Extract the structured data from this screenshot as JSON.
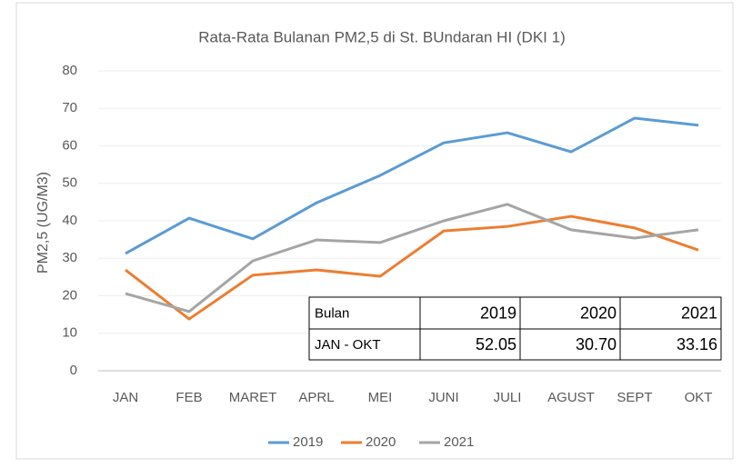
{
  "chart_data": {
    "type": "line",
    "title": "Rata-Rata  Bulanan  PM2,5  di  St. BUndaran  HI  (DKI  1)",
    "y_label": "PM2,5 (UG/M3)",
    "categories": [
      "JAN",
      "FEB",
      "MARET",
      "APRL",
      "MEI",
      "JUNI",
      "JULI",
      "AGUST",
      "SEPT",
      "OKT"
    ],
    "series": [
      {
        "name": "2019",
        "color": "#5b9bd5",
        "values": [
          31.3,
          40.7,
          35.2,
          44.8,
          52.1,
          60.8,
          63.5,
          58.4,
          67.4,
          65.5
        ]
      },
      {
        "name": "2020",
        "color": "#ed7d31",
        "values": [
          26.9,
          13.8,
          25.5,
          26.9,
          25.2,
          37.3,
          38.5,
          41.2,
          38.1,
          32.2
        ]
      },
      {
        "name": "2021",
        "color": "#a5a5a5",
        "values": [
          20.6,
          15.8,
          29.3,
          34.9,
          34.2,
          40.0,
          44.4,
          37.6,
          35.4,
          37.6
        ]
      }
    ],
    "ylim": [
      0,
      80
    ],
    "yticks": [
      0,
      10,
      20,
      30,
      40,
      50,
      60,
      70,
      80
    ],
    "grid": true,
    "legend": "bottom"
  },
  "table": {
    "header": [
      "Bulan",
      "2019",
      "2020",
      "2021"
    ],
    "rows": [
      [
        "JAN - OKT",
        "52.05",
        "30.70",
        "33.16"
      ]
    ]
  }
}
